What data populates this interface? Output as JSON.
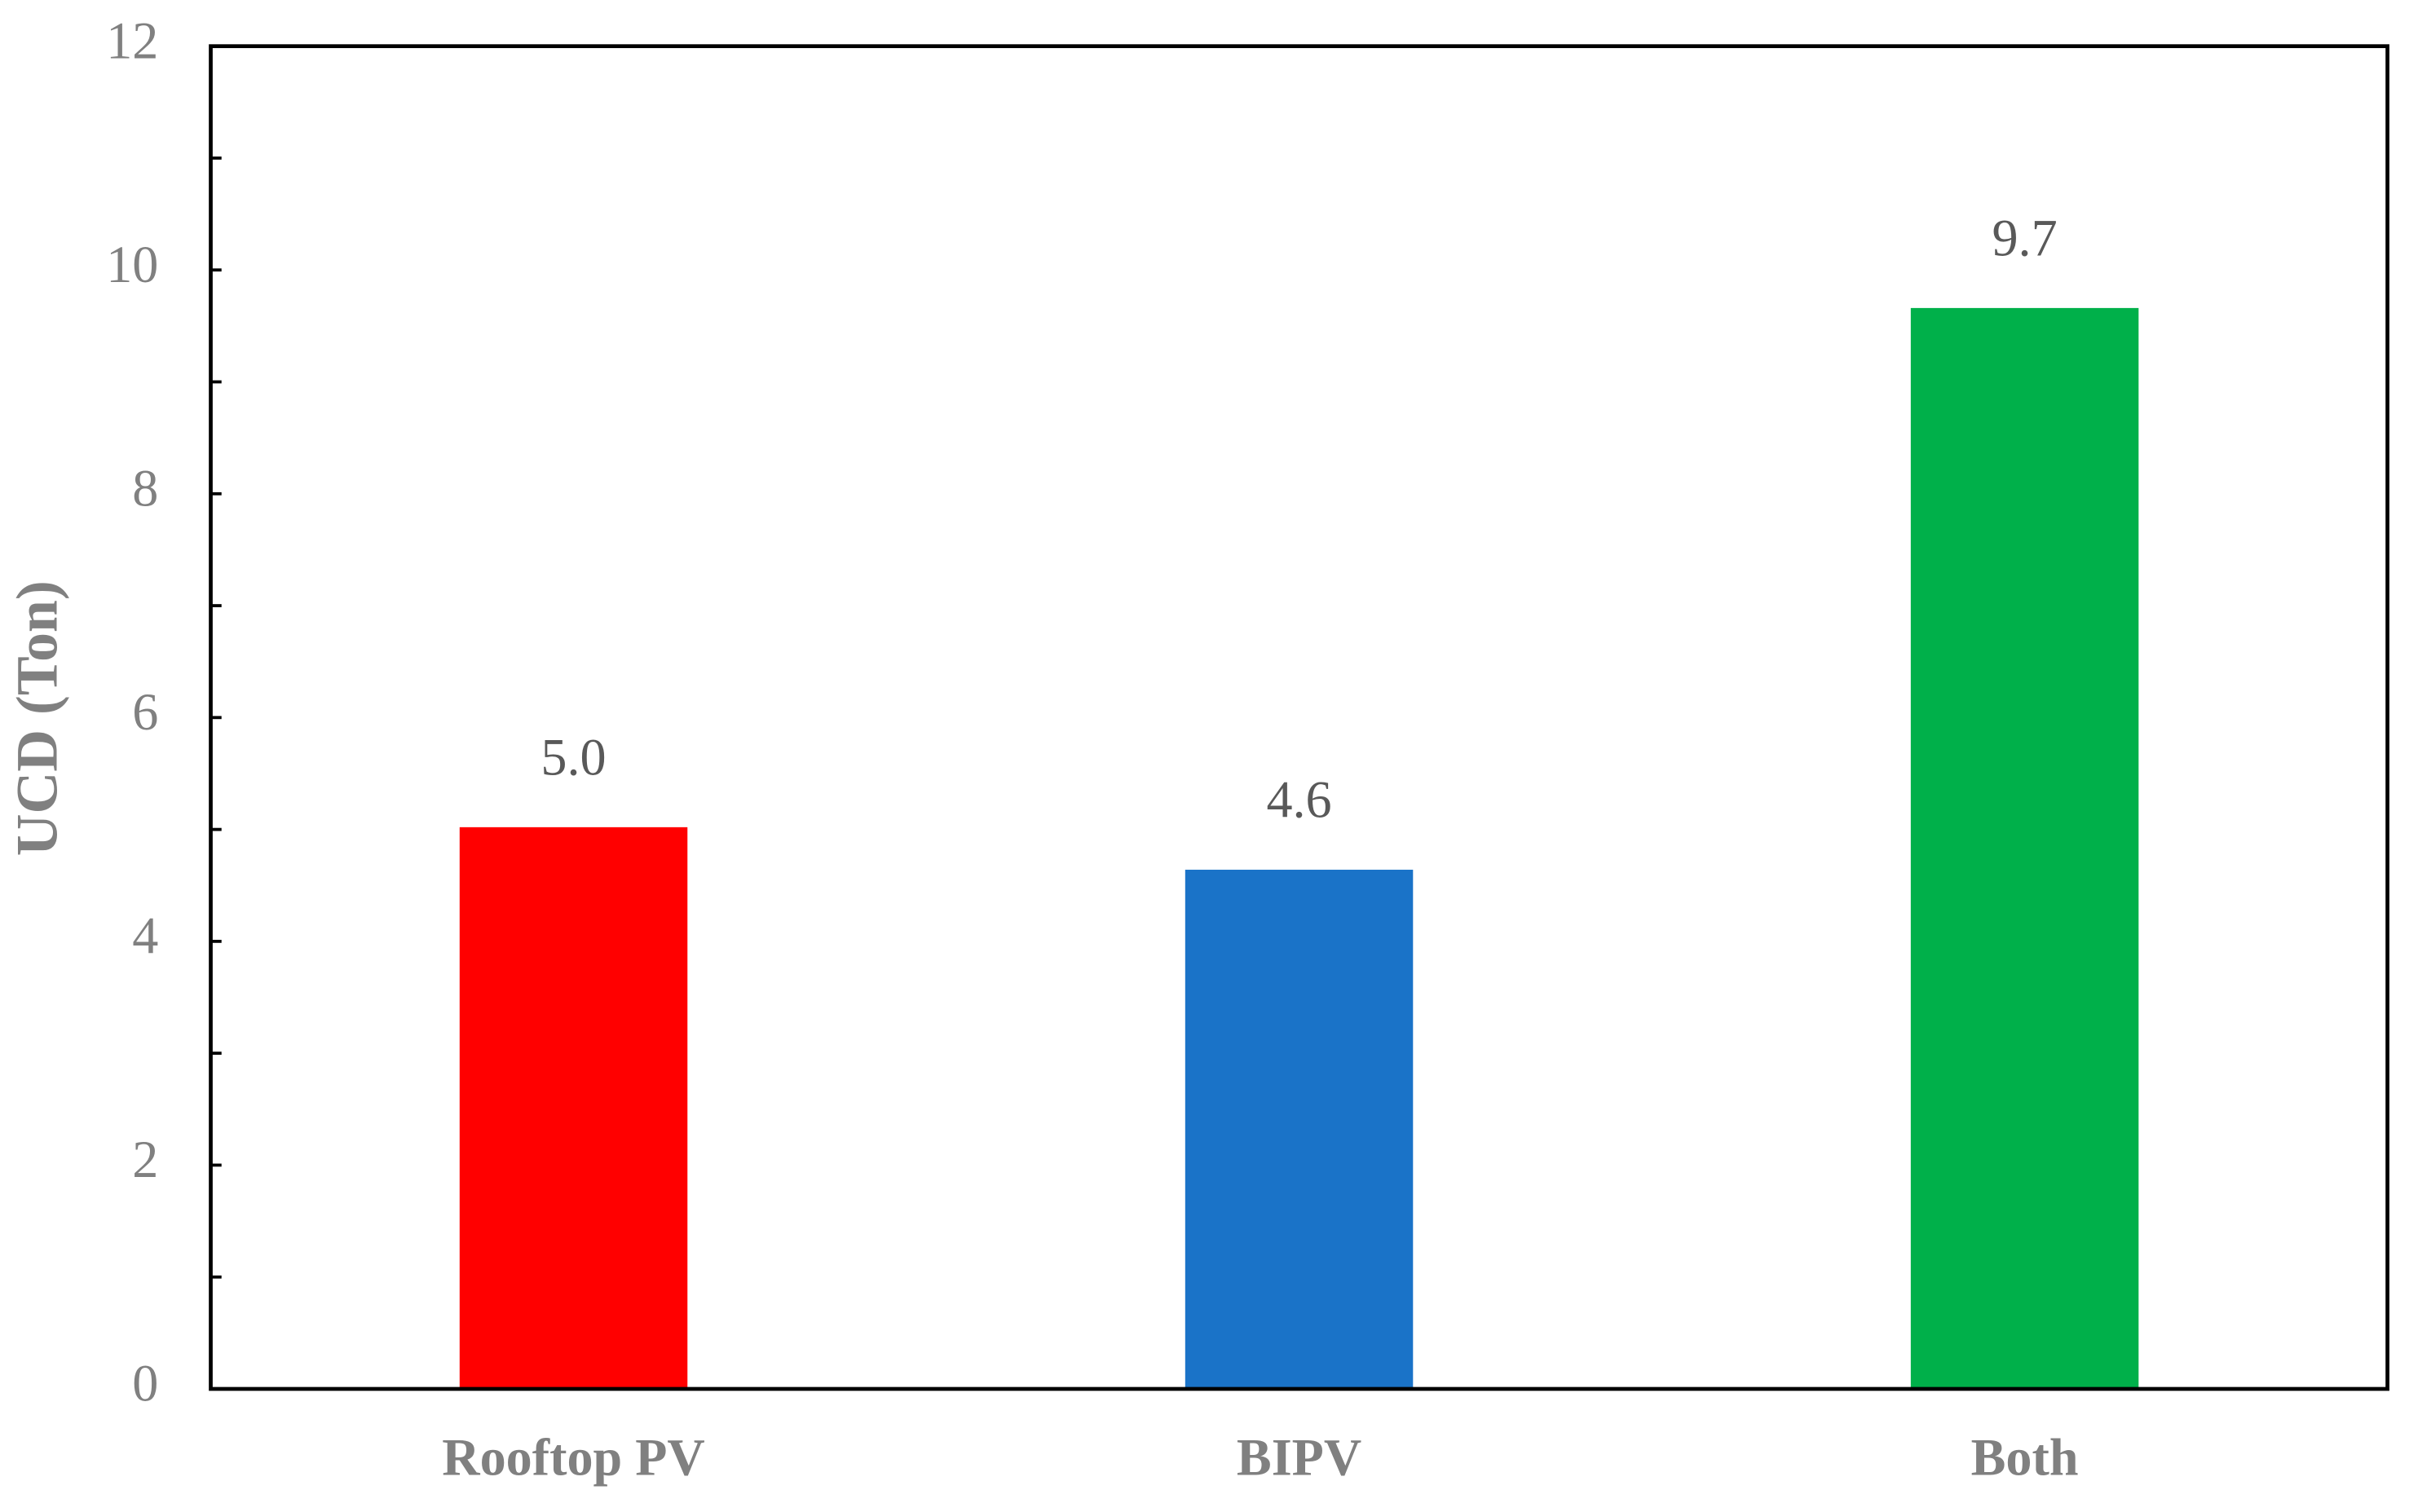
{
  "chart_data": {
    "type": "bar",
    "y_label": "UCD (Ton)",
    "categories": [
      "Rooftop PV",
      "BIPV",
      "Both"
    ],
    "values": [
      5.02,
      4.64,
      9.66
    ],
    "value_labels": [
      "5.0",
      "4.6",
      "9.7"
    ],
    "colors": [
      "#ff0000",
      "#1a73c8",
      "#00b04a"
    ],
    "ylim": [
      0,
      12
    ],
    "yticks": [
      0,
      2,
      4,
      6,
      8,
      10,
      12
    ],
    "minor_yticks": [
      1,
      3,
      5,
      7,
      9,
      11
    ],
    "grid": false
  }
}
